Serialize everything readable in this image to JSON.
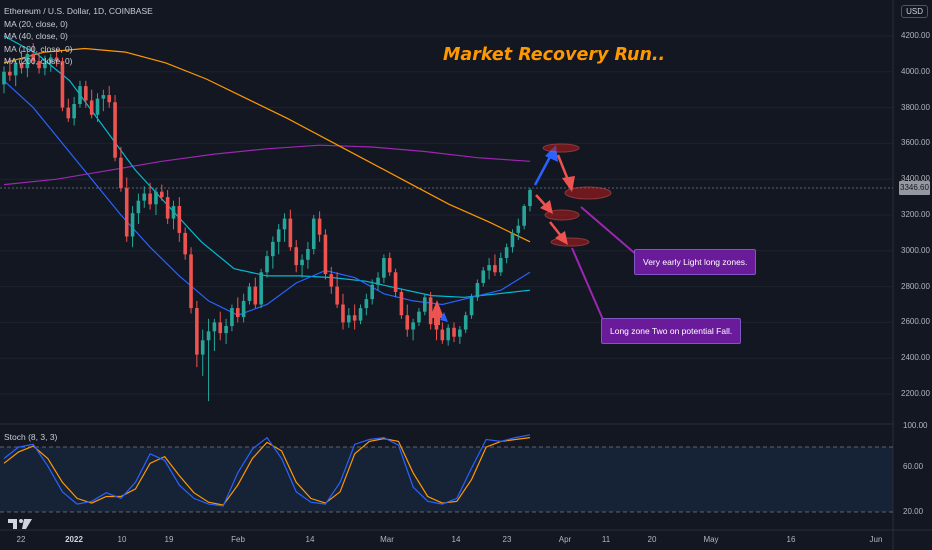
{
  "legend": {
    "symbol": "Ethereum / U.S. Dollar, 1D, COINBASE",
    "ma1": "MA (20, close, 0)",
    "ma2": "MA (40, close, 0)",
    "ma3": "MA (100, close, 0)",
    "ma4": "MA (200, close, 0)"
  },
  "currency": "USD",
  "last_price": "3346.60",
  "title": "Market Recovery Run..",
  "notes": {
    "note1": "Very early Light long zones.",
    "note2": "Long zone Two on potential Fall."
  },
  "stoch": {
    "label": "Stoch (8, 3, 3)",
    "levels": [
      "100.00",
      "60.00",
      "20.00"
    ]
  },
  "y_axis": [
    "4200.00",
    "4000.00",
    "3800.00",
    "3600.00",
    "3400.00",
    "3200.00",
    "3000.00",
    "2800.00",
    "2600.00",
    "2400.00",
    "2200.00"
  ],
  "x_axis": [
    "22",
    "2022",
    "10",
    "19",
    "Feb",
    "14",
    "Mar",
    "14",
    "23",
    "Apr",
    "11",
    "20",
    "May",
    "16",
    "Jun"
  ],
  "colors": {
    "background": "#131722",
    "up_candle": "#26a69a",
    "down_candle": "#ef5350",
    "ma20": "#2962ff",
    "ma40": "#00bcd4",
    "ma100": "#ff9800",
    "ma200": "#9c27b0",
    "title": "#ff9800",
    "note": "#6a1b9a"
  },
  "chart_data": {
    "type": "candlestick",
    "title": "Market Recovery Run..",
    "ylim": [
      2100,
      4320
    ],
    "series_names": [
      "MA (20, close, 0)",
      "MA (40, close, 0)",
      "MA (100, close, 0)",
      "MA (200, close, 0)"
    ],
    "candles": [
      [
        3930,
        4030,
        3880,
        4000
      ],
      [
        4000,
        4080,
        3950,
        3980
      ],
      [
        3980,
        4070,
        3920,
        4050
      ],
      [
        4050,
        4120,
        3990,
        4020
      ],
      [
        4020,
        4130,
        3970,
        4100
      ],
      [
        4100,
        4160,
        4040,
        4060
      ],
      [
        4060,
        4110,
        3990,
        4020
      ],
      [
        4020,
        4090,
        3980,
        4050
      ],
      [
        4050,
        4100,
        4000,
        4080
      ],
      [
        4080,
        4130,
        4030,
        4060
      ],
      [
        4060,
        4080,
        3780,
        3800
      ],
      [
        3800,
        3850,
        3720,
        3740
      ],
      [
        3740,
        3860,
        3700,
        3820
      ],
      [
        3820,
        3950,
        3800,
        3920
      ],
      [
        3920,
        3950,
        3800,
        3840
      ],
      [
        3840,
        3900,
        3740,
        3760
      ],
      [
        3760,
        3880,
        3720,
        3850
      ],
      [
        3850,
        3900,
        3780,
        3870
      ],
      [
        3870,
        3920,
        3800,
        3830
      ],
      [
        3830,
        3870,
        3500,
        3520
      ],
      [
        3520,
        3580,
        3330,
        3350
      ],
      [
        3350,
        3410,
        3050,
        3080
      ],
      [
        3080,
        3250,
        3020,
        3210
      ],
      [
        3210,
        3320,
        3150,
        3280
      ],
      [
        3280,
        3360,
        3240,
        3320
      ],
      [
        3320,
        3380,
        3230,
        3260
      ],
      [
        3260,
        3350,
        3200,
        3330
      ],
      [
        3330,
        3370,
        3280,
        3300
      ],
      [
        3300,
        3340,
        3150,
        3180
      ],
      [
        3180,
        3280,
        3120,
        3250
      ],
      [
        3250,
        3300,
        3050,
        3100
      ],
      [
        3100,
        3130,
        2950,
        2980
      ],
      [
        2980,
        3020,
        2650,
        2680
      ],
      [
        2680,
        2720,
        2350,
        2420
      ],
      [
        2420,
        2560,
        2300,
        2500
      ],
      [
        2500,
        2620,
        2160,
        2550
      ],
      [
        2550,
        2620,
        2440,
        2600
      ],
      [
        2600,
        2660,
        2500,
        2540
      ],
      [
        2540,
        2620,
        2480,
        2580
      ],
      [
        2580,
        2700,
        2550,
        2680
      ],
      [
        2680,
        2740,
        2600,
        2630
      ],
      [
        2630,
        2760,
        2600,
        2720
      ],
      [
        2720,
        2820,
        2700,
        2800
      ],
      [
        2800,
        2850,
        2680,
        2700
      ],
      [
        2700,
        2900,
        2680,
        2880
      ],
      [
        2880,
        3000,
        2850,
        2970
      ],
      [
        2970,
        3080,
        2900,
        3050
      ],
      [
        3050,
        3150,
        2980,
        3120
      ],
      [
        3120,
        3210,
        3050,
        3180
      ],
      [
        3180,
        3230,
        3000,
        3020
      ],
      [
        3020,
        3060,
        2880,
        2920
      ],
      [
        2920,
        2980,
        2850,
        2950
      ],
      [
        2950,
        3050,
        2900,
        3010
      ],
      [
        3010,
        3200,
        2980,
        3180
      ],
      [
        3180,
        3220,
        3050,
        3090
      ],
      [
        3090,
        3120,
        2840,
        2870
      ],
      [
        2870,
        2910,
        2760,
        2800
      ],
      [
        2800,
        2880,
        2680,
        2700
      ],
      [
        2700,
        2760,
        2560,
        2600
      ],
      [
        2600,
        2680,
        2570,
        2640
      ],
      [
        2640,
        2700,
        2560,
        2610
      ],
      [
        2610,
        2700,
        2590,
        2680
      ],
      [
        2680,
        2760,
        2640,
        2730
      ],
      [
        2730,
        2840,
        2700,
        2810
      ],
      [
        2810,
        2880,
        2780,
        2850
      ],
      [
        2850,
        2980,
        2820,
        2960
      ],
      [
        2960,
        2990,
        2860,
        2880
      ],
      [
        2880,
        2900,
        2740,
        2770
      ],
      [
        2770,
        2790,
        2620,
        2640
      ],
      [
        2640,
        2700,
        2520,
        2560
      ],
      [
        2560,
        2620,
        2500,
        2600
      ],
      [
        2600,
        2680,
        2580,
        2660
      ],
      [
        2660,
        2760,
        2640,
        2740
      ],
      [
        2740,
        2770,
        2560,
        2590
      ],
      [
        2590,
        2620,
        2500,
        2560
      ],
      [
        2560,
        2600,
        2480,
        2500
      ],
      [
        2500,
        2590,
        2470,
        2570
      ],
      [
        2570,
        2600,
        2490,
        2520
      ],
      [
        2520,
        2580,
        2480,
        2560
      ],
      [
        2560,
        2660,
        2540,
        2640
      ],
      [
        2640,
        2760,
        2620,
        2740
      ],
      [
        2740,
        2840,
        2720,
        2820
      ],
      [
        2820,
        2910,
        2800,
        2890
      ],
      [
        2890,
        2960,
        2840,
        2920
      ],
      [
        2920,
        2980,
        2860,
        2880
      ],
      [
        2880,
        2990,
        2860,
        2960
      ],
      [
        2960,
        3040,
        2930,
        3020
      ],
      [
        3020,
        3120,
        2990,
        3100
      ],
      [
        3100,
        3180,
        3060,
        3140
      ],
      [
        3140,
        3260,
        3120,
        3250
      ],
      [
        3250,
        3350,
        3220,
        3340
      ]
    ],
    "ma20": [
      3950,
      3800,
      3600,
      3400,
      3200,
      3020,
      2860,
      2720,
      2640,
      2700,
      2820,
      2890,
      2850,
      2760,
      2720,
      2700,
      2740,
      2780,
      2880
    ],
    "ma40": [
      4200,
      4100,
      3950,
      3700,
      3450,
      3250,
      3050,
      2900,
      2860,
      2860,
      2850,
      2830,
      2790,
      2750,
      2740,
      2760,
      2780
    ],
    "ma100": [
      4050,
      4110,
      4130,
      4110,
      4050,
      3960,
      3850,
      3740,
      3620,
      3500,
      3380,
      3260,
      3160,
      3050
    ],
    "ma200": [
      3370,
      3400,
      3450,
      3500,
      3540,
      3570,
      3590,
      3580,
      3555,
      3520,
      3500
    ],
    "stoch_k": [
      70,
      82,
      85,
      62,
      35,
      22,
      25,
      34,
      28,
      45,
      75,
      68,
      42,
      28,
      22,
      20,
      55,
      80,
      92,
      70,
      35,
      24,
      22,
      45,
      85,
      90,
      92,
      84,
      40,
      25,
      22,
      28,
      60,
      90,
      88,
      92,
      95
    ],
    "stoch_d": [
      65,
      77,
      83,
      70,
      45,
      28,
      23,
      30,
      30,
      38,
      65,
      72,
      52,
      34,
      24,
      21,
      42,
      70,
      87,
      78,
      45,
      28,
      23,
      35,
      75,
      88,
      91,
      88,
      55,
      30,
      23,
      25,
      48,
      82,
      88,
      90,
      92
    ]
  }
}
